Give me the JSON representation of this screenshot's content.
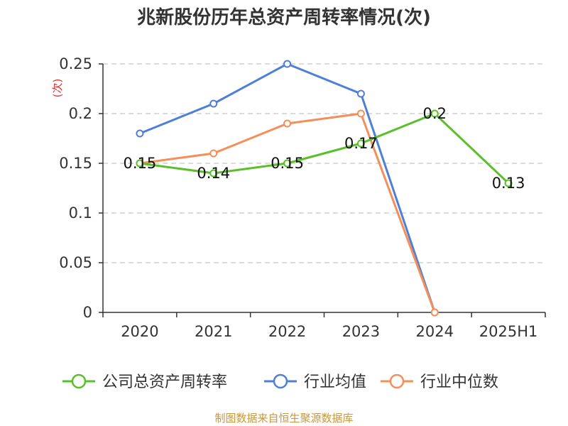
{
  "chart_data": {
    "type": "line",
    "title": "兆新股份历年总资产周转率情况(次)",
    "ylabel": "(次)",
    "xlabel": "",
    "categories": [
      "2020",
      "2021",
      "2022",
      "2023",
      "2024",
      "2025H1"
    ],
    "ylim": [
      0,
      0.25
    ],
    "yticks": [
      0,
      0.05,
      0.1,
      0.15,
      0.2,
      0.25
    ],
    "ytick_labels": [
      "0",
      "0.05",
      "0.1",
      "0.15",
      "0.2",
      "0.25"
    ],
    "grid": true,
    "legend_position": "bottom",
    "series": [
      {
        "name": "公司总资产周转率",
        "color": "#5ac02a",
        "values": [
          0.15,
          0.14,
          0.15,
          0.17,
          0.2,
          0.13
        ],
        "labels": [
          "0.15",
          "0.14",
          "0.15",
          "0.17",
          "0.2",
          "0.13"
        ]
      },
      {
        "name": "行业均值",
        "color": "#4f7fd6",
        "values": [
          0.18,
          0.21,
          0.25,
          0.22,
          0,
          null
        ],
        "labels": []
      },
      {
        "name": "行业中位数",
        "color": "#f58f5a",
        "values": [
          0.15,
          0.16,
          0.19,
          0.2,
          0,
          null
        ],
        "labels": []
      }
    ],
    "source": "制图数据来自恒生聚源数据库"
  }
}
